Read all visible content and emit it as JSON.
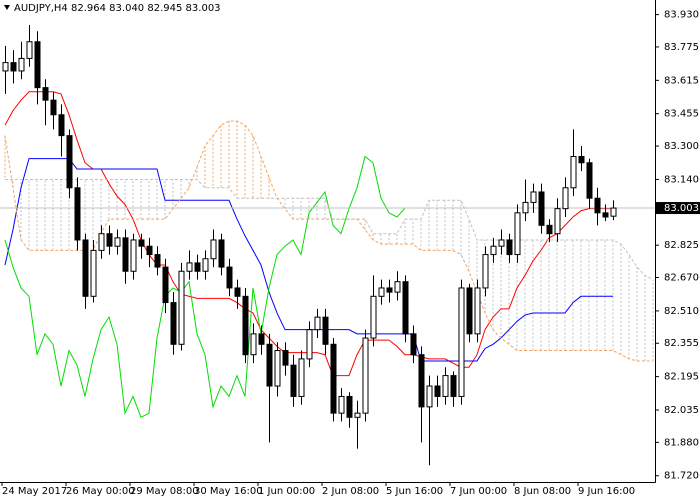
{
  "chart_data": {
    "type": "candlestick",
    "symbol": "AUDJPY,H4",
    "ohlc": [
      82.964,
      {
        "value": 83.04,
        "label": "83.040"
      },
      82.945,
      83.003
    ],
    "categories": [
      "24 May 2017",
      null,
      null,
      null,
      null,
      null,
      null,
      null,
      "26 May 00:00",
      null,
      null,
      null,
      null,
      null,
      null,
      null,
      "29 May 08:00",
      null,
      null,
      null,
      null,
      null,
      null,
      null,
      "30 May 16:00",
      null,
      null,
      null,
      null,
      null,
      null,
      null,
      "1 Jun 00:00",
      null,
      null,
      null,
      null,
      null,
      null,
      null,
      "2 Jun 08:00",
      null,
      null,
      null,
      null,
      null,
      null,
      null,
      "5 Jun 16:00",
      null,
      null,
      null,
      null,
      null,
      null,
      null,
      "7 Jun 00:00",
      null,
      null,
      null,
      null,
      null,
      null,
      null,
      "8 Jun 08:00",
      null,
      null,
      null,
      null,
      null,
      null,
      null,
      "9 Jun 16:00",
      null,
      null,
      null,
      null,
      null,
      null,
      null,
      null,
      null
    ],
    "open": [
      83.66,
      83.7,
      83.66,
      83.72,
      83.8,
      83.58,
      83.52,
      83.45,
      83.35,
      83.1,
      82.85,
      82.58,
      82.8,
      82.88,
      82.82,
      82.86,
      82.7,
      82.85,
      82.82,
      82.78,
      82.72,
      82.55,
      82.35,
      82.7,
      82.74,
      82.7,
      82.76,
      82.85,
      82.72,
      82.62,
      82.58,
      82.3,
      82.4,
      82.35,
      82.15,
      82.32,
      82.25,
      82.1,
      82.28,
      82.42,
      82.48,
      82.35,
      82.02,
      82.1,
      82.0,
      82.02,
      82.38,
      82.58,
      82.62,
      82.6,
      82.65,
      82.4,
      82.3,
      82.05,
      82.15,
      82.1,
      82.2,
      82.1,
      82.62,
      82.4,
      82.62,
      82.78,
      82.82,
      82.85,
      82.78,
      82.98,
      83.03,
      83.08,
      82.92,
      82.88,
      83.0,
      83.1,
      83.25,
      83.22,
      83.05,
      82.98,
      82.964,
      null,
      null,
      null,
      null,
      null
    ],
    "high": [
      83.78,
      83.76,
      83.8,
      83.88,
      83.85,
      83.62,
      83.56,
      83.5,
      83.38,
      83.15,
      82.88,
      82.85,
      82.92,
      82.92,
      82.9,
      82.9,
      82.88,
      82.88,
      82.86,
      82.82,
      82.76,
      82.6,
      82.74,
      82.8,
      82.78,
      82.8,
      82.9,
      82.88,
      82.76,
      82.66,
      82.62,
      82.45,
      82.44,
      82.4,
      82.36,
      82.36,
      82.3,
      82.32,
      82.46,
      82.52,
      82.52,
      82.38,
      82.14,
      82.12,
      82.08,
      82.42,
      82.68,
      82.66,
      82.66,
      82.7,
      82.68,
      82.44,
      82.34,
      82.2,
      82.2,
      82.24,
      82.22,
      82.66,
      82.64,
      82.66,
      82.82,
      82.86,
      82.9,
      82.88,
      83.02,
      83.14,
      83.12,
      83.12,
      82.95,
      83.05,
      83.15,
      83.38,
      83.3,
      83.24,
      83.1,
      83.02,
      83.04,
      null,
      null,
      null,
      null,
      null
    ],
    "low": [
      83.55,
      83.6,
      83.62,
      83.68,
      83.5,
      83.4,
      83.38,
      83.25,
      83.05,
      82.8,
      82.52,
      82.55,
      82.76,
      82.78,
      82.78,
      82.64,
      82.66,
      82.76,
      82.72,
      82.68,
      82.5,
      82.3,
      82.32,
      82.66,
      82.66,
      82.66,
      82.72,
      82.68,
      82.58,
      82.52,
      82.26,
      82.26,
      82.3,
      81.88,
      82.1,
      82.2,
      82.05,
      82.06,
      82.24,
      82.38,
      82.3,
      81.98,
      81.98,
      81.95,
      81.85,
      81.98,
      82.34,
      82.54,
      82.55,
      82.56,
      82.36,
      82.26,
      81.88,
      81.77,
      82.05,
      82.06,
      82.05,
      82.06,
      82.36,
      82.36,
      82.58,
      82.74,
      82.78,
      82.74,
      82.74,
      82.94,
      82.98,
      82.88,
      82.84,
      82.84,
      82.96,
      83.06,
      83.18,
      83.0,
      82.92,
      82.94,
      82.945,
      null,
      null,
      null,
      null,
      null
    ],
    "close": [
      83.7,
      83.66,
      83.72,
      83.8,
      83.58,
      83.52,
      83.45,
      83.35,
      83.1,
      82.85,
      82.58,
      82.8,
      82.88,
      82.82,
      82.86,
      82.7,
      82.85,
      82.82,
      82.78,
      82.72,
      82.55,
      82.35,
      82.7,
      82.74,
      82.7,
      82.76,
      82.85,
      82.72,
      82.62,
      82.58,
      82.3,
      82.4,
      82.35,
      82.15,
      82.32,
      82.25,
      82.1,
      82.28,
      82.42,
      82.48,
      82.35,
      82.02,
      82.1,
      82.0,
      82.02,
      82.38,
      82.58,
      82.62,
      82.6,
      82.65,
      82.4,
      82.3,
      82.05,
      82.15,
      82.1,
      82.2,
      82.1,
      82.62,
      82.4,
      82.62,
      82.78,
      82.82,
      82.85,
      82.78,
      82.98,
      83.03,
      83.08,
      82.92,
      82.88,
      83.0,
      83.1,
      83.25,
      83.22,
      83.05,
      82.98,
      82.96,
      83.003,
      null,
      null,
      null,
      null,
      null
    ],
    "series": [
      {
        "color": "#ff0000",
        "values": [
          83.4,
          83.47,
          83.52,
          83.56,
          83.56,
          83.56,
          83.56,
          83.55,
          83.45,
          83.33,
          83.22,
          83.19,
          83.19,
          83.12,
          83.06,
          83.02,
          82.95,
          82.85,
          82.78,
          82.73,
          82.73,
          82.65,
          82.59,
          82.58,
          82.57,
          82.57,
          82.57,
          82.57,
          82.57,
          82.55,
          82.52,
          82.5,
          82.42,
          82.38,
          82.34,
          82.31,
          82.31,
          82.31,
          82.31,
          82.31,
          82.3,
          82.2,
          82.2,
          82.2,
          82.3,
          82.37,
          82.37,
          82.37,
          82.37,
          82.34,
          82.3,
          82.3,
          82.29,
          82.28,
          82.28,
          82.28,
          82.26,
          82.24,
          82.24,
          82.3,
          82.42,
          82.48,
          82.52,
          82.52,
          82.62,
          82.68,
          82.75,
          82.8,
          82.86,
          82.88,
          82.92,
          82.96,
          82.99,
          83.0,
          83.0,
          83.0,
          83.0,
          null,
          null,
          null,
          null,
          null
        ]
      },
      {
        "color": "#0000ff",
        "values": [
          82.73,
          82.9,
          83.1,
          83.24,
          83.24,
          83.24,
          83.24,
          83.24,
          83.24,
          83.19,
          83.19,
          83.19,
          83.19,
          83.19,
          83.19,
          83.19,
          83.19,
          83.19,
          83.19,
          83.19,
          83.04,
          83.04,
          83.04,
          83.04,
          83.04,
          83.04,
          83.04,
          83.04,
          83.04,
          82.95,
          82.87,
          82.8,
          82.73,
          82.6,
          82.5,
          82.42,
          82.42,
          82.42,
          82.42,
          82.42,
          82.42,
          82.42,
          82.42,
          82.42,
          82.4,
          82.4,
          82.4,
          82.4,
          82.4,
          82.4,
          82.4,
          82.4,
          82.27,
          82.27,
          82.27,
          82.27,
          82.27,
          82.27,
          82.27,
          82.27,
          82.33,
          82.35,
          82.38,
          82.42,
          82.46,
          82.49,
          82.5,
          82.5,
          82.5,
          82.5,
          82.5,
          82.55,
          82.58,
          82.58,
          82.58,
          82.58,
          82.58,
          null,
          null,
          null,
          null,
          null
        ]
      },
      {
        "color": "#00dd00",
        "values": [
          82.85,
          82.72,
          82.62,
          82.58,
          82.3,
          82.4,
          82.35,
          82.15,
          82.32,
          82.25,
          82.1,
          82.28,
          82.42,
          82.48,
          82.35,
          82.02,
          82.1,
          82.0,
          82.02,
          82.38,
          82.58,
          82.62,
          82.6,
          82.65,
          82.4,
          82.3,
          82.05,
          82.15,
          82.1,
          82.2,
          82.1,
          82.62,
          82.4,
          82.62,
          82.78,
          82.82,
          82.85,
          82.78,
          82.98,
          83.03,
          83.08,
          82.92,
          82.88,
          83.0,
          83.1,
          83.25,
          83.22,
          83.05,
          82.98,
          82.96,
          83.003,
          null,
          null,
          null,
          null,
          null,
          null,
          null,
          null,
          null,
          null,
          null,
          null,
          null,
          null,
          null,
          null,
          null,
          null,
          null,
          null,
          null,
          null,
          null,
          null,
          null,
          null,
          null,
          null,
          null,
          null,
          null
        ]
      },
      {
        "color": "#f4a460",
        "dash": true,
        "values": [
          83.35,
          83.1,
          82.85,
          82.8,
          82.8,
          82.8,
          82.8,
          82.8,
          82.8,
          82.8,
          82.8,
          82.8,
          82.88,
          82.95,
          82.95,
          82.95,
          82.95,
          82.95,
          82.95,
          82.95,
          82.95,
          83.0,
          83.05,
          83.1,
          83.2,
          83.3,
          83.35,
          83.4,
          83.42,
          83.42,
          83.4,
          83.35,
          83.25,
          83.15,
          83.05,
          83.0,
          82.95,
          82.95,
          82.95,
          82.95,
          82.95,
          82.95,
          82.95,
          82.95,
          82.95,
          82.9,
          82.85,
          82.83,
          82.83,
          82.83,
          82.83,
          82.83,
          82.8,
          82.8,
          82.8,
          82.8,
          82.8,
          82.78,
          82.7,
          82.6,
          82.5,
          82.42,
          82.38,
          82.35,
          82.32,
          82.32,
          82.32,
          82.32,
          82.32,
          82.32,
          82.32,
          82.32,
          82.32,
          82.32,
          82.32,
          82.32,
          82.32,
          82.3,
          82.28,
          82.27,
          82.27,
          82.27
        ]
      },
      {
        "color": "#c0c0c0",
        "dash": true,
        "values": [
          83.14,
          83.14,
          83.14,
          83.14,
          83.14,
          83.14,
          83.14,
          83.14,
          83.14,
          83.14,
          83.14,
          83.14,
          83.14,
          83.14,
          83.14,
          83.14,
          83.14,
          83.14,
          83.14,
          83.14,
          83.14,
          83.14,
          83.14,
          83.14,
          83.14,
          83.1,
          83.1,
          83.1,
          83.1,
          83.05,
          83.05,
          83.05,
          83.05,
          83.05,
          83.05,
          83.05,
          83.05,
          83.05,
          83.05,
          83.05,
          83.05,
          82.95,
          82.95,
          82.95,
          82.95,
          82.95,
          82.88,
          82.88,
          82.88,
          82.88,
          82.95,
          82.95,
          82.95,
          83.04,
          83.04,
          83.04,
          83.04,
          83.04,
          82.95,
          82.85,
          82.85,
          82.85,
          82.85,
          82.85,
          82.85,
          82.85,
          82.85,
          82.85,
          82.85,
          82.85,
          82.85,
          82.85,
          82.85,
          82.85,
          82.85,
          82.85,
          82.85,
          82.83,
          82.78,
          82.72,
          82.68,
          82.66
        ]
      }
    ],
    "ylim": [
      81.69,
      84.0
    ],
    "yticks": [
      {
        "value": 83.93,
        "label": "83.930"
      },
      83.775,
      83.615,
      83.455,
      {
        "value": 83.3,
        "label": "83.300"
      },
      {
        "value": 83.14,
        "label": "83.140"
      },
      82.825,
      {
        "value": 82.67,
        "label": "82.670"
      },
      {
        "value": 82.51,
        "label": "82.510"
      },
      82.355,
      82.195,
      82.035,
      {
        "value": 81.88,
        "label": "81.880"
      },
      {
        "value": 81.72,
        "label": "81.720"
      }
    ],
    "grid": false,
    "current_price_line": true
  }
}
